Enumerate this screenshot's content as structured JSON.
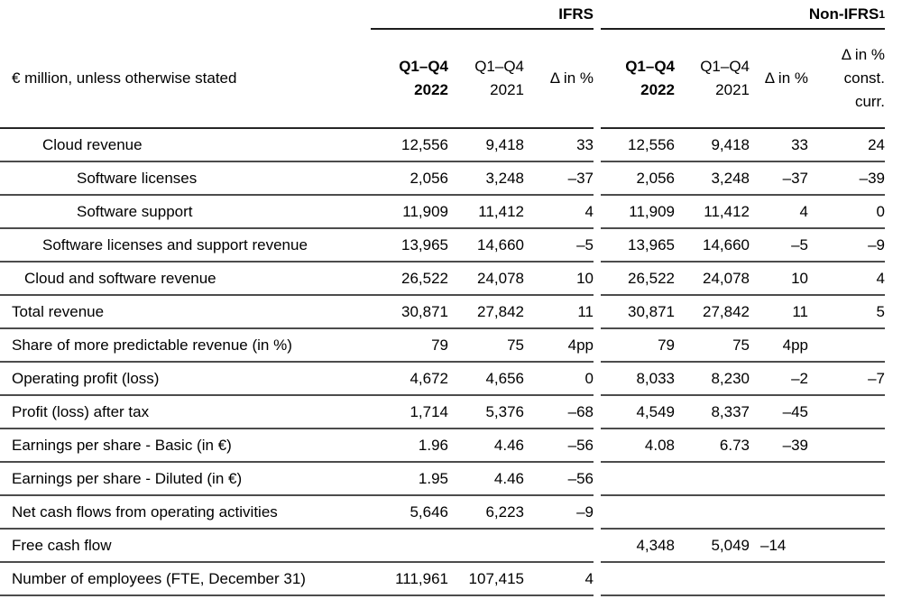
{
  "unit_note": "€ million, unless otherwise stated",
  "groups": {
    "ifrs": {
      "label": "IFRS",
      "footnote": ""
    },
    "non_ifrs": {
      "label": "Non-IFRS",
      "footnote": "1"
    }
  },
  "columns": {
    "period_2022": [
      "Q1–Q4",
      "2022"
    ],
    "period_2021": [
      "Q1–Q4",
      "2021"
    ],
    "delta": "Δ in %",
    "delta_const": [
      "Δ in %",
      "const.",
      "curr."
    ]
  },
  "rows": [
    {
      "label": "Cloud revenue",
      "indent": 2,
      "ifrs_2022": "12,556",
      "ifrs_2021": "9,418",
      "ifrs_delta": "33",
      "non_2022": "12,556",
      "non_2021": "9,418",
      "non_delta": "33",
      "non_delta_cc": "24"
    },
    {
      "label": "Software licenses",
      "indent": 3,
      "ifrs_2022": "2,056",
      "ifrs_2021": "3,248",
      "ifrs_delta": "–37",
      "non_2022": "2,056",
      "non_2021": "3,248",
      "non_delta": "–37",
      "non_delta_cc": "–39"
    },
    {
      "label": "Software support",
      "indent": 3,
      "ifrs_2022": "11,909",
      "ifrs_2021": "11,412",
      "ifrs_delta": "4",
      "non_2022": "11,909",
      "non_2021": "11,412",
      "non_delta": "4",
      "non_delta_cc": "0"
    },
    {
      "label": "Software licenses and support revenue",
      "indent": 2,
      "ifrs_2022": "13,965",
      "ifrs_2021": "14,660",
      "ifrs_delta": "–5",
      "non_2022": "13,965",
      "non_2021": "14,660",
      "non_delta": "–5",
      "non_delta_cc": "–9"
    },
    {
      "label": "Cloud and software revenue",
      "indent": 1,
      "ifrs_2022": "26,522",
      "ifrs_2021": "24,078",
      "ifrs_delta": "10",
      "non_2022": "26,522",
      "non_2021": "24,078",
      "non_delta": "10",
      "non_delta_cc": "4"
    },
    {
      "label": "Total revenue",
      "indent": 0,
      "ifrs_2022": "30,871",
      "ifrs_2021": "27,842",
      "ifrs_delta": "11",
      "non_2022": "30,871",
      "non_2021": "27,842",
      "non_delta": "11",
      "non_delta_cc": "5"
    },
    {
      "label": "Share of more predictable revenue (in %)",
      "indent": 0,
      "ifrs_2022": "79",
      "ifrs_2021": "75",
      "ifrs_delta": "4pp",
      "non_2022": "79",
      "non_2021": "75",
      "non_delta": "4pp",
      "non_delta_cc": ""
    },
    {
      "label": "Operating profit (loss)",
      "indent": 0,
      "ifrs_2022": "4,672",
      "ifrs_2021": "4,656",
      "ifrs_delta": "0",
      "non_2022": "8,033",
      "non_2021": "8,230",
      "non_delta": "–2",
      "non_delta_cc": "–7"
    },
    {
      "label": "Profit (loss) after tax",
      "indent": 0,
      "ifrs_2022": "1,714",
      "ifrs_2021": "5,376",
      "ifrs_delta": "–68",
      "non_2022": "4,549",
      "non_2021": "8,337",
      "non_delta": "–45",
      "non_delta_cc": ""
    },
    {
      "label": "Earnings per share - Basic (in €)",
      "indent": 0,
      "ifrs_2022": "1.96",
      "ifrs_2021": "4.46",
      "ifrs_delta": "–56",
      "non_2022": "4.08",
      "non_2021": "6.73",
      "non_delta": "–39",
      "non_delta_cc": ""
    },
    {
      "label": "Earnings per share - Diluted (in €)",
      "indent": 0,
      "ifrs_2022": "1.95",
      "ifrs_2021": "4.46",
      "ifrs_delta": "–56",
      "non_2022": "",
      "non_2021": "",
      "non_delta": "",
      "non_delta_cc": ""
    },
    {
      "label": "Net cash flows from operating activities",
      "indent": 0,
      "ifrs_2022": "5,646",
      "ifrs_2021": "6,223",
      "ifrs_delta": "–9",
      "non_2022": "",
      "non_2021": "",
      "non_delta": "",
      "non_delta_cc": ""
    },
    {
      "label": "Free cash flow",
      "indent": 0,
      "ifrs_2022": "",
      "ifrs_2021": "",
      "ifrs_delta": "",
      "non_2022": "4,348",
      "non_2021": "5,049",
      "non_delta": "–14",
      "non_delta_cc": "",
      "non_delta_align": "left"
    },
    {
      "label": "Number of employees (FTE, December 31)",
      "indent": 0,
      "ifrs_2022": "111,961",
      "ifrs_2021": "107,415",
      "ifrs_delta": "4",
      "non_2022": "",
      "non_2021": "",
      "non_delta": "",
      "non_delta_cc": ""
    }
  ]
}
